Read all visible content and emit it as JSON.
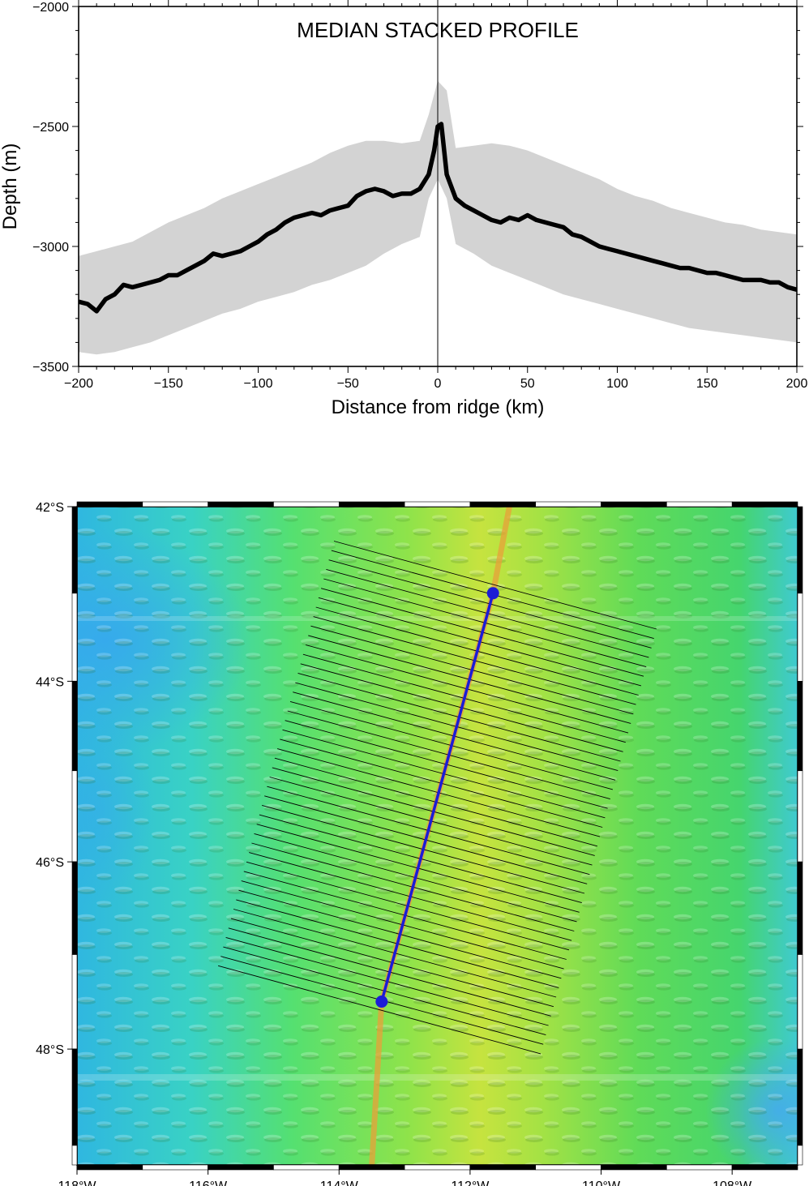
{
  "chart_data": [
    {
      "type": "line",
      "title": "MEDIAN STACKED PROFILE",
      "xlabel": "Distance from ridge (km)",
      "ylabel": "Depth (m)",
      "xlim": [
        -200,
        200
      ],
      "ylim": [
        -3500,
        -2000
      ],
      "xticks": [
        "−200",
        "−150",
        "−100",
        "−50",
        "0",
        "50",
        "100",
        "150",
        "200"
      ],
      "yticks": [
        "−2000",
        "−2500",
        "−3000",
        "−3500"
      ],
      "grid": false,
      "vertical_reference_line_x": 0,
      "colors": {
        "line": "#000000",
        "band": "#d3d3d3"
      },
      "series": [
        {
          "role": "median",
          "x": [
            -200,
            -195,
            -190,
            -185,
            -180,
            -175,
            -170,
            -165,
            -160,
            -155,
            -150,
            -145,
            -140,
            -135,
            -130,
            -125,
            -120,
            -115,
            -110,
            -105,
            -100,
            -95,
            -90,
            -85,
            -80,
            -75,
            -70,
            -65,
            -60,
            -55,
            -50,
            -45,
            -40,
            -35,
            -30,
            -25,
            -20,
            -15,
            -10,
            -5,
            -2,
            0,
            2,
            5,
            10,
            15,
            20,
            25,
            30,
            35,
            40,
            45,
            50,
            55,
            60,
            65,
            70,
            75,
            80,
            85,
            90,
            95,
            100,
            105,
            110,
            115,
            120,
            125,
            130,
            135,
            140,
            145,
            150,
            155,
            160,
            165,
            170,
            175,
            180,
            185,
            190,
            195,
            200
          ],
          "y": [
            -3230,
            -3240,
            -3270,
            -3220,
            -3200,
            -3160,
            -3170,
            -3160,
            -3150,
            -3140,
            -3120,
            -3120,
            -3100,
            -3080,
            -3060,
            -3030,
            -3040,
            -3030,
            -3020,
            -3000,
            -2980,
            -2950,
            -2930,
            -2900,
            -2880,
            -2870,
            -2860,
            -2870,
            -2850,
            -2840,
            -2830,
            -2790,
            -2770,
            -2760,
            -2770,
            -2790,
            -2780,
            -2780,
            -2760,
            -2700,
            -2600,
            -2500,
            -2490,
            -2700,
            -2800,
            -2830,
            -2850,
            -2870,
            -2890,
            -2900,
            -2880,
            -2890,
            -2870,
            -2890,
            -2900,
            -2910,
            -2920,
            -2950,
            -2960,
            -2980,
            -3000,
            -3010,
            -3020,
            -3030,
            -3040,
            -3050,
            -3060,
            -3070,
            -3080,
            -3090,
            -3090,
            -3100,
            -3110,
            -3110,
            -3120,
            -3130,
            -3140,
            -3140,
            -3140,
            -3150,
            -3150,
            -3170,
            -3180
          ]
        },
        {
          "role": "envelope-upper",
          "x": [
            -200,
            -190,
            -180,
            -170,
            -160,
            -150,
            -140,
            -130,
            -120,
            -110,
            -100,
            -90,
            -80,
            -70,
            -60,
            -50,
            -40,
            -30,
            -20,
            -10,
            -5,
            0,
            5,
            10,
            20,
            30,
            40,
            50,
            60,
            70,
            80,
            90,
            100,
            110,
            120,
            130,
            140,
            150,
            160,
            170,
            180,
            190,
            200
          ],
          "y": [
            -3040,
            -3020,
            -3000,
            -2980,
            -2940,
            -2900,
            -2870,
            -2840,
            -2800,
            -2770,
            -2740,
            -2710,
            -2680,
            -2650,
            -2610,
            -2580,
            -2560,
            -2560,
            -2570,
            -2560,
            -2450,
            -2310,
            -2350,
            -2590,
            -2580,
            -2570,
            -2580,
            -2600,
            -2630,
            -2660,
            -2690,
            -2720,
            -2760,
            -2790,
            -2810,
            -2840,
            -2860,
            -2880,
            -2900,
            -2910,
            -2930,
            -2940,
            -2950
          ]
        },
        {
          "role": "envelope-lower",
          "x": [
            -200,
            -190,
            -180,
            -170,
            -160,
            -150,
            -140,
            -130,
            -120,
            -110,
            -100,
            -90,
            -80,
            -70,
            -60,
            -50,
            -40,
            -30,
            -20,
            -10,
            -5,
            0,
            5,
            10,
            20,
            30,
            40,
            50,
            60,
            70,
            80,
            90,
            100,
            110,
            120,
            130,
            140,
            150,
            160,
            170,
            180,
            190,
            200
          ],
          "y": [
            -3440,
            -3450,
            -3440,
            -3420,
            -3400,
            -3370,
            -3340,
            -3310,
            -3280,
            -3260,
            -3230,
            -3210,
            -3190,
            -3160,
            -3140,
            -3110,
            -3080,
            -3030,
            -2990,
            -2960,
            -2800,
            -2720,
            -2800,
            -2990,
            -3030,
            -3080,
            -3110,
            -3140,
            -3170,
            -3200,
            -3220,
            -3240,
            -3260,
            -3280,
            -3300,
            -3320,
            -3340,
            -3350,
            -3360,
            -3370,
            -3380,
            -3390,
            -3400
          ]
        }
      ]
    },
    {
      "type": "map",
      "x_unit": "longitude (deg)",
      "y_unit": "latitude (deg)",
      "xlim": [
        -118,
        -107
      ],
      "ylim": [
        -49.2,
        -42
      ],
      "xticks": [
        "118°W",
        "116°W",
        "114°W",
        "112°W",
        "110°W",
        "108°W"
      ],
      "yticks": [
        "42°S",
        "44°S",
        "46°S",
        "48°S"
      ],
      "colors": {
        "profile_line": "#1c1cd6",
        "cross_profiles": "#000000",
        "ridge_axis": "#e8a03a"
      },
      "profile_line": {
        "start": [
          -111.65,
          -43.0
        ],
        "end": [
          -113.35,
          -47.5
        ]
      },
      "ridge_axis": [
        [
          -111.4,
          -42
        ],
        [
          -111.65,
          -43.0
        ],
        [
          -113.35,
          -47.5
        ],
        [
          -113.5,
          -49.2
        ]
      ],
      "cross_profile_count": 46,
      "cross_profile_half_length_km": 200
    }
  ]
}
